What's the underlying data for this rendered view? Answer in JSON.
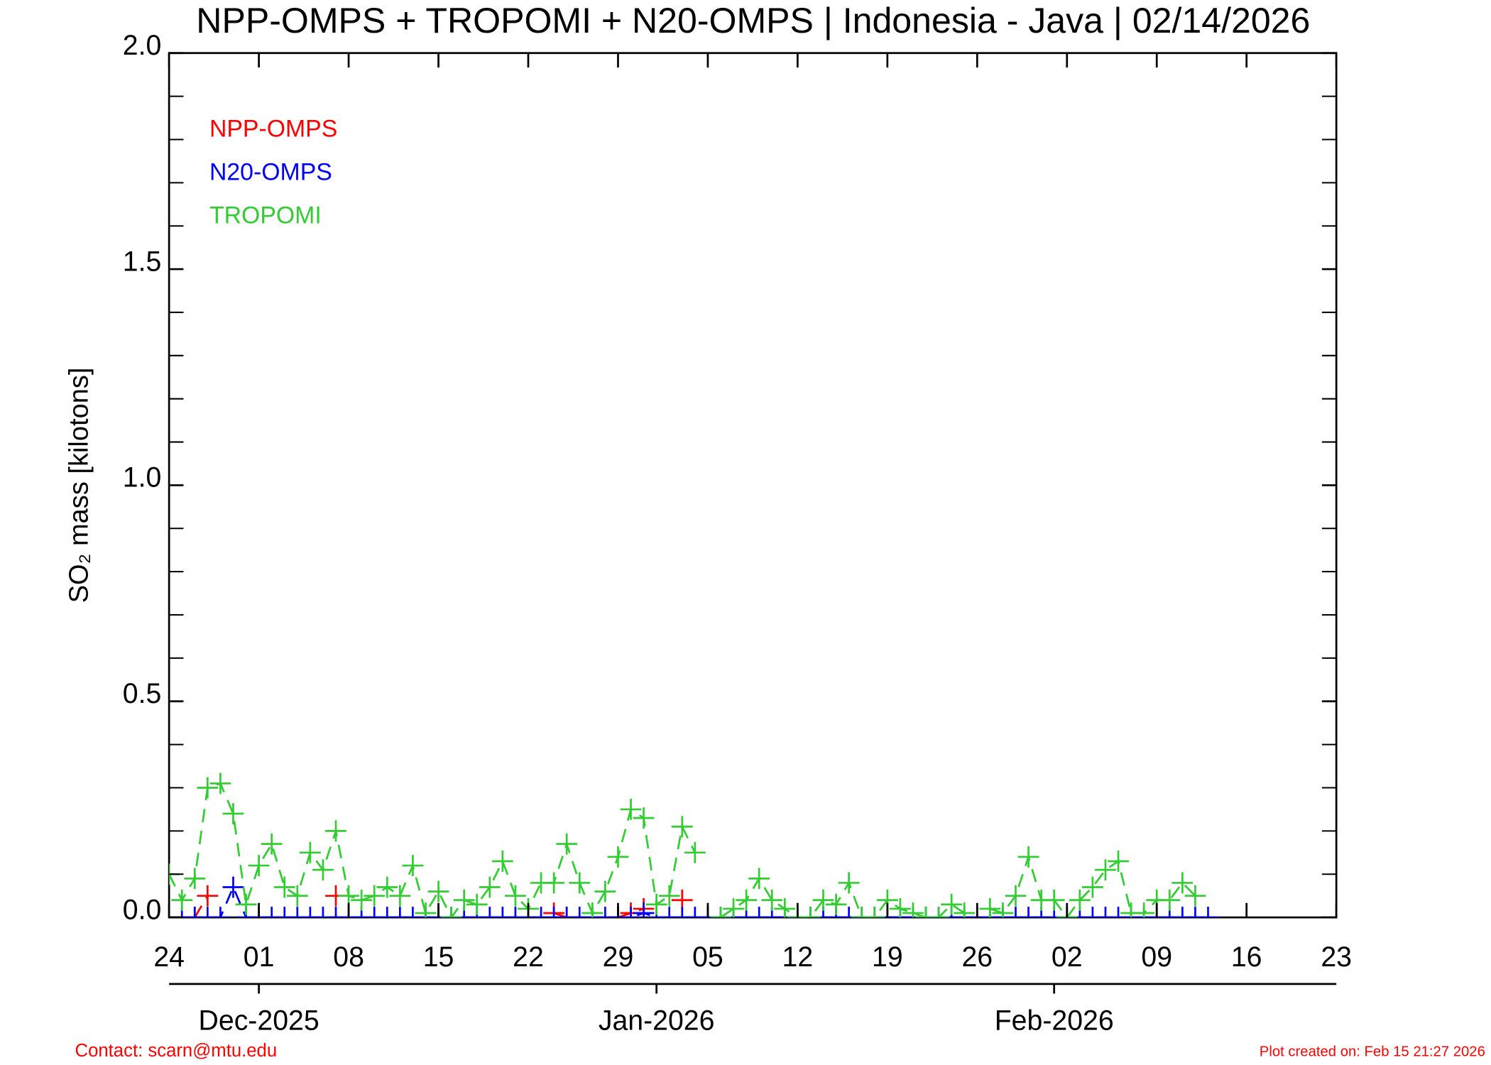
{
  "chart_data": {
    "type": "line",
    "title": "NPP-OMPS + TROPOMI + N20-OMPS | Indonesia - Java | 02/14/2026",
    "y_label": "SO₂ mass [kilotons]",
    "contact": "Contact: scarn@mtu.edu",
    "created": "Plot created on: Feb 15 21:27 2026",
    "xlim": [
      "2025-11-24",
      "2026-02-23"
    ],
    "xticks": [
      {
        "value": "2025-11-24",
        "label": "24"
      },
      {
        "value": "2025-12-01",
        "label": "01"
      },
      {
        "value": "2025-12-08",
        "label": "08"
      },
      {
        "value": "2025-12-15",
        "label": "15"
      },
      {
        "value": "2025-12-22",
        "label": "22"
      },
      {
        "value": "2025-12-29",
        "label": "29"
      },
      {
        "value": "2026-01-05",
        "label": "05"
      },
      {
        "value": "2026-01-12",
        "label": "12"
      },
      {
        "value": "2026-01-19",
        "label": "19"
      },
      {
        "value": "2026-01-26",
        "label": "26"
      },
      {
        "value": "2026-02-02",
        "label": "02"
      },
      {
        "value": "2026-02-09",
        "label": "09"
      },
      {
        "value": "2026-02-16",
        "label": "16"
      },
      {
        "value": "2026-02-23",
        "label": "23"
      }
    ],
    "month_ticks": [
      {
        "value": "2025-12-01",
        "label": "Dec-2025"
      },
      {
        "value": "2026-01-01",
        "label": "Jan-2026"
      },
      {
        "value": "2026-02-01",
        "label": "Feb-2026"
      }
    ],
    "ylim": [
      0,
      2
    ],
    "yticks": [
      {
        "value": 0,
        "label": "0.0"
      },
      {
        "value": 0.5,
        "label": "0.5"
      },
      {
        "value": 1,
        "label": "1.0"
      },
      {
        "value": 1.5,
        "label": "1.5"
      },
      {
        "value": 2,
        "label": "2.0"
      }
    ],
    "yminorticks": [
      0.1,
      0.2,
      0.3,
      0.4,
      0.6,
      0.7,
      0.8,
      0.9,
      1.1,
      1.2,
      1.3,
      1.4,
      1.6,
      1.7,
      1.8,
      1.9
    ],
    "legend": "upper left",
    "x": [
      "2025-11-24",
      "2025-11-25",
      "2025-11-26",
      "2025-11-27",
      "2025-11-28",
      "2025-11-29",
      "2025-11-30",
      "2025-12-01",
      "2025-12-02",
      "2025-12-03",
      "2025-12-04",
      "2025-12-05",
      "2025-12-06",
      "2025-12-07",
      "2025-12-08",
      "2025-12-09",
      "2025-12-10",
      "2025-12-11",
      "2025-12-12",
      "2025-12-13",
      "2025-12-14",
      "2025-12-15",
      "2025-12-16",
      "2025-12-17",
      "2025-12-18",
      "2025-12-19",
      "2025-12-20",
      "2025-12-21",
      "2025-12-22",
      "2025-12-23",
      "2025-12-24",
      "2025-12-25",
      "2025-12-26",
      "2025-12-27",
      "2025-12-28",
      "2025-12-29",
      "2025-12-30",
      "2025-12-31",
      "2026-01-01",
      "2026-01-02",
      "2026-01-03",
      "2026-01-04",
      "2026-01-05",
      "2026-01-06",
      "2026-01-07",
      "2026-01-08",
      "2026-01-09",
      "2026-01-10",
      "2026-01-11",
      "2026-01-12",
      "2026-01-13",
      "2026-01-14",
      "2026-01-15",
      "2026-01-16",
      "2026-01-17",
      "2026-01-18",
      "2026-01-19",
      "2026-01-20",
      "2026-01-21",
      "2026-01-22",
      "2026-01-23",
      "2026-01-24",
      "2026-01-25",
      "2026-01-26",
      "2026-01-27",
      "2026-01-28",
      "2026-01-29",
      "2026-01-30",
      "2026-01-31",
      "2026-02-01",
      "2026-02-02",
      "2026-02-03",
      "2026-02-04",
      "2026-02-05",
      "2026-02-06",
      "2026-02-07",
      "2026-02-08",
      "2026-02-09",
      "2026-02-10",
      "2026-02-11",
      "2026-02-12",
      "2026-02-13"
    ],
    "series": [
      {
        "name": "NPP-OMPS",
        "color": "#ff0000",
        "values": [
          null,
          null,
          0.0,
          0.05,
          null,
          null,
          null,
          null,
          null,
          null,
          null,
          null,
          null,
          0.05,
          null,
          null,
          null,
          null,
          null,
          null,
          null,
          null,
          null,
          null,
          null,
          null,
          null,
          null,
          null,
          null,
          0.01,
          0.0,
          null,
          null,
          null,
          0.0,
          0.01,
          0.02,
          null,
          null,
          0.04,
          null,
          null,
          null,
          null,
          null,
          null,
          null,
          null,
          null,
          null,
          null,
          null,
          null,
          null,
          null,
          null,
          null,
          null,
          null,
          null,
          null,
          null,
          null,
          null,
          null,
          null,
          null,
          null,
          null,
          null,
          null,
          null,
          null,
          null,
          null,
          null,
          null,
          null,
          null,
          null,
          null
        ]
      },
      {
        "name": "N20-OMPS",
        "color": "#0000ff",
        "values": [
          0,
          0,
          0,
          0,
          0,
          0.07,
          0,
          0,
          0,
          0,
          0,
          0,
          0,
          0,
          0,
          0,
          0,
          0,
          0,
          0,
          0,
          0,
          0,
          0,
          0,
          0,
          0,
          0,
          0,
          0,
          0,
          0,
          0,
          0,
          0,
          0,
          0,
          0.01,
          0,
          0,
          0,
          0,
          0,
          0,
          0,
          0,
          0,
          0,
          0,
          0,
          0,
          0,
          0,
          0,
          0,
          0,
          0,
          0,
          0,
          0,
          0,
          0,
          0,
          0,
          0,
          0,
          0,
          0,
          0,
          0,
          0,
          0,
          0,
          0,
          0,
          0,
          0,
          0,
          0,
          0,
          0,
          0
        ]
      },
      {
        "name": "TROPOMI",
        "color": "#33cc33",
        "values": [
          0.1,
          0.04,
          0.09,
          0.3,
          0.31,
          0.24,
          0.03,
          0.12,
          0.17,
          0.07,
          0.05,
          0.15,
          0.11,
          0.2,
          0.05,
          0.04,
          0.05,
          0.07,
          0.05,
          0.12,
          0.01,
          0.06,
          0.0,
          0.04,
          0.03,
          0.07,
          0.13,
          0.05,
          0.02,
          0.08,
          0.08,
          0.17,
          0.08,
          0.01,
          0.06,
          0.14,
          0.25,
          0.23,
          0.03,
          0.05,
          0.21,
          0.15,
          null,
          0.0,
          0.02,
          0.04,
          0.09,
          0.04,
          0.02,
          0.0,
          0.0,
          0.04,
          0.03,
          0.08,
          0.0,
          0.0,
          0.04,
          0.02,
          0.01,
          0.0,
          0.0,
          0.03,
          0.01,
          null,
          0.02,
          0.01,
          0.05,
          0.14,
          0.04,
          0.04,
          0.0,
          0.04,
          0.07,
          0.11,
          0.13,
          0.01,
          0.01,
          0.04,
          0.04,
          0.08,
          0.05,
          null
        ]
      }
    ]
  }
}
